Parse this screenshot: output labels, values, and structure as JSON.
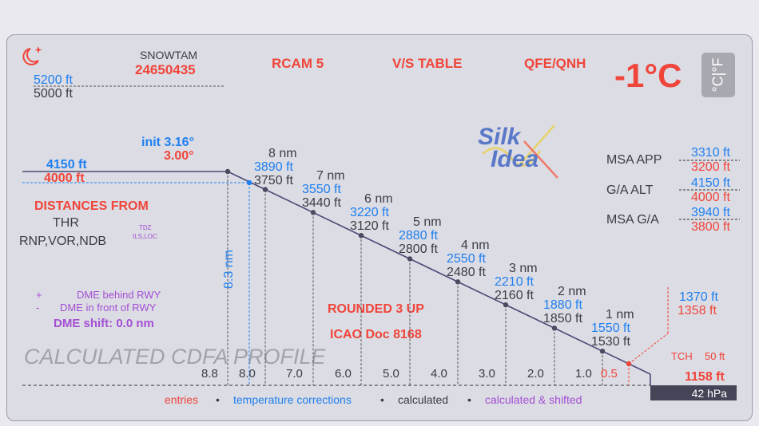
{
  "header": {
    "snowtam_label": "SNOWTAM",
    "snowtam_value": "24650435",
    "rcam_label": "RCAM 5",
    "vs_table_label": "V/S TABLE",
    "qfe_qnh_label": "QFE/QNH",
    "temperature": "-1°C",
    "unit_toggle": "°C|°F"
  },
  "altitudes_top": {
    "corrected": "5200 ft",
    "entered": "5000 ft"
  },
  "fap": {
    "corrected": "4150 ft",
    "entered": "4000 ft"
  },
  "angles": {
    "init": "init 3.16°",
    "final": "3.00°"
  },
  "distances": {
    "title": "DISTANCES FROM",
    "thr": "THR",
    "nav_types": "RNP,VOR,NDB",
    "tdz": "TDZ",
    "ils_loc": "ILS,LOC"
  },
  "dme": {
    "behind_sign": "+",
    "behind": "DME behind RWY",
    "front_sign": "-",
    "front": "DME in front of RWY",
    "shift": "DME shift: 0.0 nm"
  },
  "rounded": "ROUNDED 3 UP",
  "icao": "ICAO Doc 8168",
  "watermark": "CALCULATED CDFA PROFILE",
  "distance_marker": "8.3 nm",
  "profile_points": [
    {
      "nm": "8 nm",
      "corrected": "3890 ft",
      "entered": "3750 ft"
    },
    {
      "nm": "7 nm",
      "corrected": "3550 ft",
      "entered": "3440 ft"
    },
    {
      "nm": "6 nm",
      "corrected": "3220 ft",
      "entered": "3120 ft"
    },
    {
      "nm": "5 nm",
      "corrected": "2880 ft",
      "entered": "2800 ft"
    },
    {
      "nm": "4 nm",
      "corrected": "2550 ft",
      "entered": "2480 ft"
    },
    {
      "nm": "3 nm",
      "corrected": "2210 ft",
      "entered": "2160 ft"
    },
    {
      "nm": "2 nm",
      "corrected": "1880 ft",
      "entered": "1850 ft"
    },
    {
      "nm": "1 nm",
      "corrected": "1550 ft",
      "entered": "1530 ft"
    }
  ],
  "axis_ticks": [
    "8.8",
    "8.0",
    "7.0",
    "6.0",
    "5.0",
    "4.0",
    "3.0",
    "2.0",
    "1.0"
  ],
  "axis_tick_final": "0.5",
  "right_panel": {
    "msa_app_label": "MSA APP",
    "msa_app_corrected": "3310 ft",
    "msa_app_entered": "3200 ft",
    "ga_alt_label": "G/A ALT",
    "ga_alt_corrected": "4150 ft",
    "ga_alt_entered": "4000 ft",
    "msa_ga_label": "MSA G/A",
    "msa_ga_corrected": "3940 ft",
    "msa_ga_entered": "3800 ft"
  },
  "threshold": {
    "corrected": "1370 ft",
    "entered": "1358 ft",
    "tch_label": "TCH",
    "tch_value": "50 ft",
    "elevation": "1158 ft",
    "qnh": "42 hPa"
  },
  "logo": {
    "line1": "Silk",
    "line2": "Idea"
  },
  "legend": {
    "entries": "entries",
    "temp": "temperature corrections",
    "calculated": "calculated",
    "shifted": "calculated & shifted",
    "sep": "•"
  },
  "colors": {
    "red": "#f0453a",
    "blue": "#1e7ff0",
    "dark": "#3c3c44",
    "purple": "#a34fd4",
    "line": "#4a4a78"
  }
}
